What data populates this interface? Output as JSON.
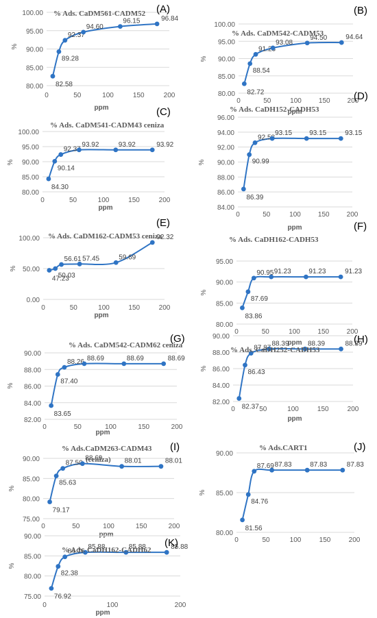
{
  "series_color": "#2f74c4",
  "chart_data": [
    {
      "type": "line",
      "panel": "(A)",
      "title": "% Ads. CaDM561-CADM52",
      "xlabel": "ppm",
      "ylabel": "%",
      "xlim": [
        0,
        200
      ],
      "xticks": [
        0,
        50,
        100,
        150,
        200
      ],
      "xtick_labels": [
        "0",
        "50",
        "100",
        "150",
        "200"
      ],
      "ylim": [
        80,
        100
      ],
      "yticks": [
        80,
        85,
        90,
        95,
        100
      ],
      "ytick_labels": [
        "80.00",
        "85.00",
        "90.00",
        "95.00",
        "100.00"
      ],
      "grid": true,
      "x": [
        10,
        20,
        30,
        60,
        120,
        180
      ],
      "y": [
        82.58,
        89.28,
        92.37,
        94.6,
        96.15,
        96.84
      ],
      "labels": [
        "82.58",
        "89.28",
        "92.37",
        "94.60",
        "96.15",
        "96.84"
      ]
    },
    {
      "type": "line",
      "panel": "(B)",
      "title": "% Ads. CaDM542-CADM53",
      "xlabel": "ppm",
      "ylabel": "%",
      "xlim": [
        0,
        200
      ],
      "xticks": [
        0,
        50,
        100,
        150,
        200
      ],
      "xtick_labels": [
        "0",
        "50",
        "100",
        "150",
        "200"
      ],
      "ylim": [
        80,
        100
      ],
      "yticks": [
        80,
        85,
        90,
        95,
        100
      ],
      "ytick_labels": [
        "80.00",
        "85.00",
        "90.00",
        "95.00",
        "100.00"
      ],
      "grid": true,
      "x": [
        10,
        20,
        30,
        60,
        120,
        180
      ],
      "y": [
        82.72,
        88.54,
        91.23,
        93.08,
        94.5,
        94.64
      ],
      "labels": [
        "82.72",
        "88.54",
        "91.23",
        "93.08",
        "94.50",
        "94.64"
      ]
    },
    {
      "type": "line",
      "panel": "(C)",
      "title": "% Ads. CaDM541-CADM43  ceniza",
      "xlabel": "ppm",
      "ylabel": "%",
      "xlim": [
        0,
        200
      ],
      "xticks": [
        0,
        50,
        100,
        150,
        200
      ],
      "xtick_labels": [
        "0",
        "50",
        "100",
        "150",
        "200"
      ],
      "ylim": [
        80,
        100
      ],
      "yticks": [
        80,
        85,
        90,
        95,
        100
      ],
      "ytick_labels": [
        "80.00",
        "85.00",
        "90.00",
        "95.00",
        "100.00"
      ],
      "grid": true,
      "x": [
        10,
        20,
        30,
        60,
        120,
        180
      ],
      "y": [
        84.3,
        90.14,
        92.37,
        93.92,
        93.92,
        93.92
      ],
      "labels": [
        "84.30",
        "90.14",
        "92.37",
        "93.92",
        "93.92",
        "93.92"
      ]
    },
    {
      "type": "line",
      "panel": "(D)",
      "title": "% Ads. CaDH152-CADH53",
      "xlabel": "ppm",
      "ylabel": "%",
      "xlim": [
        0,
        200
      ],
      "xticks": [
        0,
        50,
        100,
        150,
        200
      ],
      "xtick_labels": [
        "0",
        "50",
        "100",
        "150",
        "200"
      ],
      "ylim": [
        84,
        96
      ],
      "yticks": [
        84,
        86,
        88,
        90,
        92,
        94,
        96
      ],
      "ytick_labels": [
        "84.00",
        "86.00",
        "88.00",
        "90.00",
        "92.00",
        "94.00",
        "96.00"
      ],
      "grid": true,
      "x": [
        10,
        20,
        30,
        60,
        120,
        180
      ],
      "y": [
        86.39,
        90.99,
        92.58,
        93.15,
        93.15,
        93.15
      ],
      "labels": [
        "86.39",
        "90.99",
        "92.58",
        "93.15",
        "93.15",
        "93.15"
      ]
    },
    {
      "type": "line",
      "panel": "(E)",
      "title": "% Ads. CaDM162-CADM53  ceniza",
      "xlabel": "ppm",
      "ylabel": "%",
      "xlim": [
        0,
        200
      ],
      "xticks": [
        0,
        50,
        100,
        150,
        200
      ],
      "xtick_labels": [
        "0",
        "50",
        "100",
        "150",
        "200"
      ],
      "ylim": [
        0,
        100
      ],
      "yticks": [
        0,
        50,
        100
      ],
      "ytick_labels": [
        "0.00",
        "50.00",
        "100.00"
      ],
      "grid": true,
      "x": [
        10,
        20,
        30,
        60,
        120,
        180
      ],
      "y": [
        47.23,
        50.03,
        56.61,
        57.45,
        59.69,
        92.32
      ],
      "labels": [
        "47.23",
        "50.03",
        "56.61",
        "57.45",
        "59.69",
        "92.32"
      ]
    },
    {
      "type": "line",
      "panel": "(F)",
      "title": "% Ads. CaDH162-CADH53",
      "xlabel": "ppm",
      "ylabel": "%",
      "xlim": [
        0,
        200
      ],
      "xticks": [
        0,
        50,
        100,
        150,
        200
      ],
      "xtick_labels": [
        "0",
        "50",
        "100",
        "150",
        "200"
      ],
      "ylim": [
        80,
        95
      ],
      "yticks": [
        80,
        85,
        90,
        95
      ],
      "ytick_labels": [
        "80.00",
        "85.00",
        "90.00",
        "95.00"
      ],
      "grid": true,
      "x": [
        10,
        20,
        30,
        60,
        120,
        180
      ],
      "y": [
        83.86,
        87.69,
        90.95,
        91.23,
        91.23,
        91.23
      ],
      "labels": [
        "83.86",
        "87.69",
        "90.95",
        "91.23",
        "91.23",
        "91.23"
      ]
    },
    {
      "type": "line",
      "panel": "(G)",
      "title": "% Ads. CaDM542-CADM62  ceniza",
      "xlabel": "ppm",
      "ylabel": "%",
      "xlim": [
        0,
        200
      ],
      "xticks": [
        0,
        50,
        100,
        150,
        200
      ],
      "xtick_labels": [
        "0",
        "50",
        "100",
        "150",
        "200"
      ],
      "ylim": [
        82,
        90
      ],
      "yticks": [
        82,
        84,
        86,
        88,
        90
      ],
      "ytick_labels": [
        "82.00",
        "84.00",
        "86.00",
        "88.00",
        "90.00"
      ],
      "grid": true,
      "x": [
        10,
        20,
        30,
        60,
        120,
        180
      ],
      "y": [
        83.65,
        87.4,
        88.26,
        88.69,
        88.69,
        88.69
      ],
      "labels": [
        "83.65",
        "87.40",
        "88.26",
        "88.69",
        "88.69",
        "88.69"
      ]
    },
    {
      "type": "line",
      "panel": "(H)",
      "title": "% Ads. CaDH252-CADH53",
      "xlabel": "ppm",
      "ylabel": "%",
      "xlim": [
        0,
        200
      ],
      "xticks": [
        0,
        50,
        100,
        150,
        200
      ],
      "xtick_labels": [
        "0",
        "50",
        "100",
        "150",
        "200"
      ],
      "ylim": [
        82,
        90
      ],
      "yticks": [
        82,
        84,
        86,
        88,
        90
      ],
      "ytick_labels": [
        "82.00",
        "84.00",
        "86.00",
        "88.00",
        "90.00"
      ],
      "grid": true,
      "x": [
        10,
        20,
        30,
        60,
        120,
        180
      ],
      "y": [
        82.37,
        86.43,
        87.87,
        88.39,
        88.39,
        88.39
      ],
      "labels": [
        "82.37",
        "86.43",
        "87.87",
        "88.39",
        "88.39",
        "88.39"
      ]
    },
    {
      "type": "line",
      "panel": "(I)",
      "title": "% Ads.CaDM263-CADM43",
      "subtitle": "(ceniza)",
      "xlabel": "ppm",
      "ylabel": "%",
      "xlim": [
        0,
        200
      ],
      "xticks": [
        0,
        50,
        100,
        150,
        200
      ],
      "xtick_labels": [
        "0",
        "50",
        "100",
        "150",
        "200"
      ],
      "ylim": [
        75,
        90
      ],
      "yticks": [
        75,
        80,
        85,
        90
      ],
      "ytick_labels": [
        "75.00",
        "80.00",
        "85.00",
        "90.00"
      ],
      "grid": true,
      "x": [
        10,
        20,
        30,
        60,
        120,
        180
      ],
      "y": [
        79.17,
        85.63,
        87.5,
        88.69,
        88.01,
        88.01
      ],
      "labels": [
        "79.17",
        "85.63",
        "87.50",
        "88.69",
        "88.01",
        "88.01"
      ]
    },
    {
      "type": "line",
      "panel": "(J)",
      "title": "% Ads.CART1",
      "xlabel": "",
      "ylabel": "%",
      "xlim": [
        0,
        200
      ],
      "xticks": [
        0,
        50,
        100,
        150,
        200
      ],
      "xtick_labels": [
        "0",
        "50",
        "100",
        "150",
        "200"
      ],
      "ylim": [
        80,
        90
      ],
      "yticks": [
        80,
        85,
        90
      ],
      "ytick_labels": [
        "80.00",
        "85.00",
        "90.00"
      ],
      "grid": true,
      "x": [
        10,
        20,
        30,
        60,
        120,
        180
      ],
      "y": [
        81.56,
        84.76,
        87.69,
        87.83,
        87.83,
        87.83
      ],
      "labels": [
        "81.56",
        "84.76",
        "87.69",
        "87.83",
        "87.83",
        "87.83"
      ]
    },
    {
      "type": "line",
      "panel": "(K)",
      "title": "% Ads. CaDH162-CADH62",
      "xlabel": "ppm",
      "ylabel": "%",
      "xlim": [
        0,
        200
      ],
      "xticks": [
        0,
        100,
        200
      ],
      "xtick_labels": [
        "0",
        "100",
        "200"
      ],
      "ylim": [
        75,
        90
      ],
      "yticks": [
        75,
        80,
        85,
        90
      ],
      "ytick_labels": [
        "75.00",
        "80.00",
        "85.00",
        "90.00"
      ],
      "grid": true,
      "x": [
        10,
        20,
        30,
        60,
        120,
        180
      ],
      "y": [
        76.92,
        82.38,
        84.76,
        85.88,
        85.88,
        85.88
      ],
      "labels": [
        "76.92",
        "82.38",
        "84.76",
        "85.88",
        "85.88",
        "85.88"
      ]
    }
  ]
}
